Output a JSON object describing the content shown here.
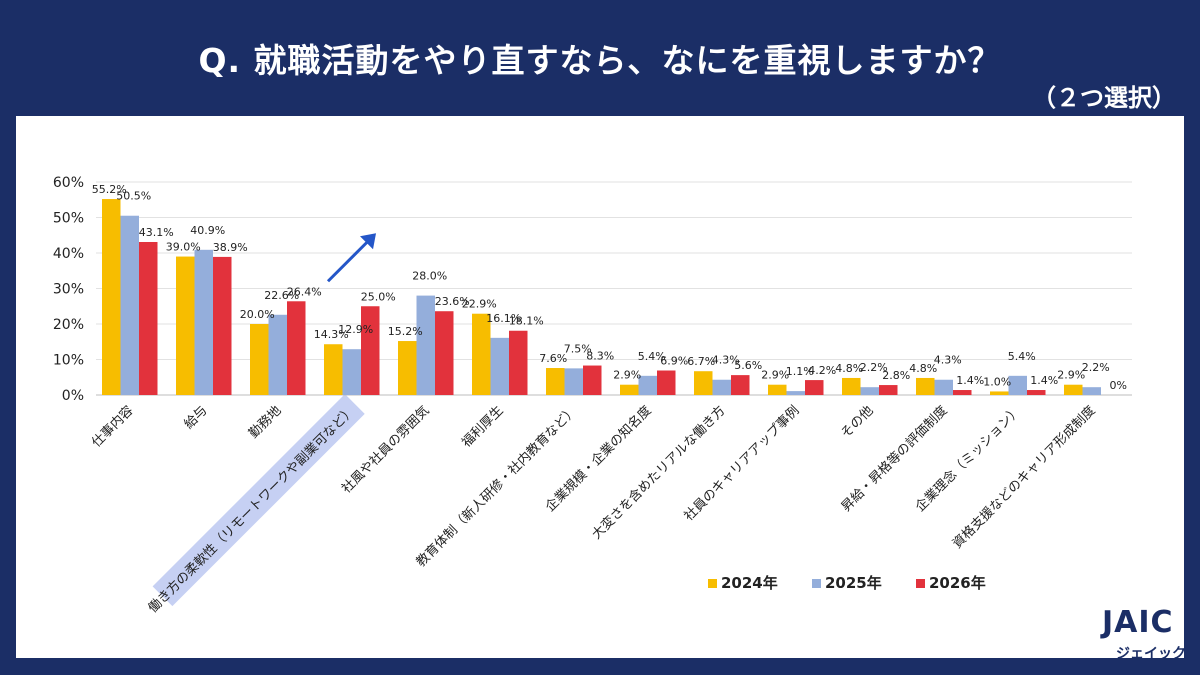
{
  "header": {
    "title": "Q. 就職活動をやり直すなら、なにを重視しますか？",
    "subtitle": "（２つ選択）"
  },
  "logo": {
    "main": "JAIC",
    "sub": "ジェイック"
  },
  "colors": {
    "background": "#1b2e66",
    "series_2024": "#f7bd00",
    "series_2025": "#94aedb",
    "series_2026": "#e2323c",
    "highlight": "#c6d0f3",
    "arrow": "#2456c8"
  },
  "chart_data": {
    "type": "bar",
    "categories": [
      "仕事内容",
      "給与",
      "勤務地",
      "働き方の柔軟性（リモートワークや副業可など）",
      "社風や社員の雰囲気",
      "福利厚生",
      "教育体制（新人研修・社内教育など）",
      "企業規模・企業の知名度",
      "大変さを含めたリアルな働き方",
      "社員のキャリアアップ事例",
      "その他",
      "昇給・昇格等の評価制度",
      "企業理念（ミッション）",
      "資格支援などのキャリア形成制度"
    ],
    "series": [
      {
        "name": "2024年",
        "values": [
          55.2,
          39.0,
          20.0,
          14.3,
          15.2,
          22.9,
          7.6,
          2.9,
          6.7,
          2.9,
          4.8,
          4.8,
          1.0,
          2.9
        ]
      },
      {
        "name": "2025年",
        "values": [
          50.5,
          40.9,
          22.6,
          12.9,
          28.0,
          16.1,
          7.5,
          5.4,
          4.3,
          1.1,
          2.2,
          4.3,
          5.4,
          2.2
        ]
      },
      {
        "name": "2026年",
        "values": [
          43.1,
          38.9,
          26.4,
          25.0,
          23.6,
          18.1,
          8.3,
          6.9,
          5.6,
          4.2,
          2.8,
          1.4,
          1.4,
          0
        ]
      }
    ],
    "data_labels": [
      [
        "55.2%",
        "39.0%",
        "20.0%",
        "14.3%",
        "15.2%",
        "22.9%",
        "7.6%",
        "2.9%",
        "6.7%",
        "2.9%",
        "4.8%",
        "4.8%",
        "1.0%",
        "2.9%"
      ],
      [
        "50.5%",
        "40.9%",
        "22.6%",
        "12.9%",
        "28.0%",
        "16.1%",
        "7.5%",
        "5.4%",
        "4.3%",
        "1.1%",
        "2.2%",
        "4.3%",
        "5.4%",
        "2.2%"
      ],
      [
        "43.1%",
        "38.9%",
        "26.4%",
        "25.0%",
        "23.6%",
        "18.1%",
        "8.3%",
        "6.9%",
        "5.6%",
        "4.2%",
        "2.8%",
        "1.4%",
        "1.4%",
        "0%"
      ]
    ],
    "y_ticks": [
      "0%",
      "10%",
      "20%",
      "30%",
      "40%",
      "50%",
      "60%"
    ],
    "ylim": [
      0,
      60
    ],
    "grid": true,
    "legend_position": "bottom-right",
    "highlighted_category_index": 3
  }
}
